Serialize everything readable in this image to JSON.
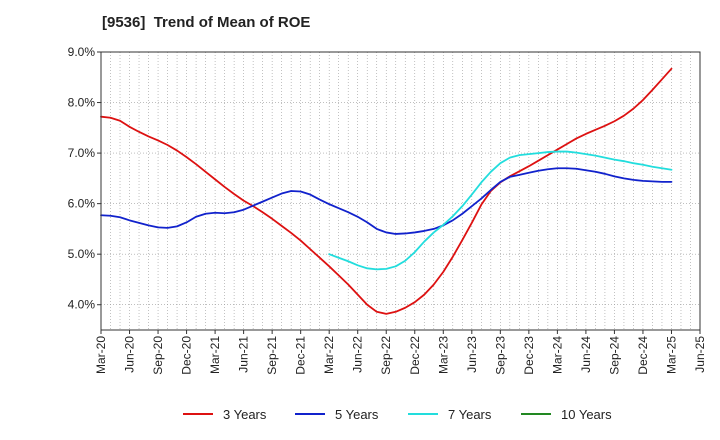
{
  "chart_data": {
    "type": "line",
    "title": "[9536]  Trend of Mean of ROE",
    "xlabel": "",
    "ylabel": "",
    "ylim": [
      3.5,
      9.0
    ],
    "yticks": [
      4.0,
      5.0,
      6.0,
      7.0,
      8.0,
      9.0
    ],
    "ytick_labels": [
      "4.0%",
      "5.0%",
      "6.0%",
      "7.0%",
      "8.0%",
      "9.0%"
    ],
    "xlim": [
      "2020-03",
      "2025-06"
    ],
    "xtick_labels": [
      "Mar-20",
      "Jun-20",
      "Sep-20",
      "Dec-20",
      "Mar-21",
      "Jun-21",
      "Sep-21",
      "Dec-21",
      "Mar-22",
      "Jun-22",
      "Sep-22",
      "Dec-22",
      "Mar-23",
      "Jun-23",
      "Sep-23",
      "Dec-23",
      "Mar-24",
      "Jun-24",
      "Sep-24",
      "Dec-24",
      "Mar-25",
      "Jun-25"
    ],
    "grid": true,
    "legend_position": "bottom",
    "series": [
      {
        "name": "3 Years",
        "color": "#dd1111",
        "x": [
          "2020-03",
          "2020-04",
          "2020-05",
          "2020-06",
          "2020-07",
          "2020-08",
          "2020-09",
          "2020-10",
          "2020-11",
          "2020-12",
          "2021-01",
          "2021-02",
          "2021-03",
          "2021-04",
          "2021-05",
          "2021-06",
          "2021-07",
          "2021-08",
          "2021-09",
          "2021-10",
          "2021-11",
          "2021-12",
          "2022-01",
          "2022-02",
          "2022-03",
          "2022-04",
          "2022-05",
          "2022-06",
          "2022-07",
          "2022-08",
          "2022-09",
          "2022-10",
          "2022-11",
          "2022-12",
          "2023-01",
          "2023-02",
          "2023-03",
          "2023-04",
          "2023-05",
          "2023-06",
          "2023-07",
          "2023-08",
          "2023-09",
          "2023-10",
          "2023-11",
          "2023-12",
          "2024-01",
          "2024-02",
          "2024-03",
          "2024-04",
          "2024-05",
          "2024-06",
          "2024-07",
          "2024-08",
          "2024-09",
          "2024-10",
          "2024-11",
          "2024-12",
          "2025-01",
          "2025-02",
          "2025-03"
        ],
        "values": [
          7.72,
          7.7,
          7.64,
          7.52,
          7.42,
          7.33,
          7.25,
          7.16,
          7.05,
          6.92,
          6.78,
          6.63,
          6.48,
          6.33,
          6.19,
          6.06,
          5.95,
          5.83,
          5.7,
          5.56,
          5.42,
          5.27,
          5.1,
          4.93,
          4.76,
          4.58,
          4.4,
          4.2,
          4.0,
          3.86,
          3.82,
          3.86,
          3.94,
          4.05,
          4.2,
          4.4,
          4.65,
          4.95,
          5.28,
          5.62,
          5.98,
          6.25,
          6.42,
          6.54,
          6.64,
          6.74,
          6.85,
          6.96,
          7.07,
          7.18,
          7.29,
          7.38,
          7.46,
          7.54,
          7.63,
          7.74,
          7.88,
          8.05,
          8.25,
          8.46,
          8.67
        ]
      },
      {
        "name": "5 Years",
        "color": "#1122cc",
        "x": [
          "2020-03",
          "2020-04",
          "2020-05",
          "2020-06",
          "2020-07",
          "2020-08",
          "2020-09",
          "2020-10",
          "2020-11",
          "2020-12",
          "2021-01",
          "2021-02",
          "2021-03",
          "2021-04",
          "2021-05",
          "2021-06",
          "2021-07",
          "2021-08",
          "2021-09",
          "2021-10",
          "2021-11",
          "2021-12",
          "2022-01",
          "2022-02",
          "2022-03",
          "2022-04",
          "2022-05",
          "2022-06",
          "2022-07",
          "2022-08",
          "2022-09",
          "2022-10",
          "2022-11",
          "2022-12",
          "2023-01",
          "2023-02",
          "2023-03",
          "2023-04",
          "2023-05",
          "2023-06",
          "2023-07",
          "2023-08",
          "2023-09",
          "2023-10",
          "2023-11",
          "2023-12",
          "2024-01",
          "2024-02",
          "2024-03",
          "2024-04",
          "2024-05",
          "2024-06",
          "2024-07",
          "2024-08",
          "2024-09",
          "2024-10",
          "2024-11",
          "2024-12",
          "2025-01",
          "2025-02",
          "2025-03"
        ],
        "values": [
          5.77,
          5.76,
          5.73,
          5.67,
          5.62,
          5.57,
          5.53,
          5.52,
          5.55,
          5.63,
          5.74,
          5.8,
          5.82,
          5.81,
          5.83,
          5.88,
          5.96,
          6.04,
          6.12,
          6.2,
          6.25,
          6.24,
          6.18,
          6.08,
          5.99,
          5.91,
          5.83,
          5.74,
          5.63,
          5.5,
          5.43,
          5.4,
          5.41,
          5.43,
          5.46,
          5.5,
          5.57,
          5.67,
          5.8,
          5.95,
          6.1,
          6.27,
          6.43,
          6.53,
          6.57,
          6.61,
          6.65,
          6.68,
          6.7,
          6.7,
          6.69,
          6.66,
          6.63,
          6.59,
          6.54,
          6.5,
          6.47,
          6.45,
          6.44,
          6.43,
          6.43
        ]
      },
      {
        "name": "7 Years",
        "color": "#22dddd",
        "x": [
          "2022-03",
          "2022-04",
          "2022-05",
          "2022-06",
          "2022-07",
          "2022-08",
          "2022-09",
          "2022-10",
          "2022-11",
          "2022-12",
          "2023-01",
          "2023-02",
          "2023-03",
          "2023-04",
          "2023-05",
          "2023-06",
          "2023-07",
          "2023-08",
          "2023-09",
          "2023-10",
          "2023-11",
          "2023-12",
          "2024-01",
          "2024-02",
          "2024-03",
          "2024-04",
          "2024-05",
          "2024-06",
          "2024-07",
          "2024-08",
          "2024-09",
          "2024-10",
          "2024-11",
          "2024-12",
          "2025-01",
          "2025-02",
          "2025-03"
        ],
        "values": [
          5.0,
          4.93,
          4.86,
          4.78,
          4.72,
          4.7,
          4.71,
          4.76,
          4.87,
          5.04,
          5.25,
          5.43,
          5.58,
          5.75,
          5.95,
          6.18,
          6.42,
          6.63,
          6.8,
          6.91,
          6.96,
          6.98,
          7.0,
          7.02,
          7.03,
          7.03,
          7.01,
          6.98,
          6.95,
          6.91,
          6.87,
          6.84,
          6.8,
          6.77,
          6.73,
          6.7,
          6.67
        ]
      },
      {
        "name": "10 Years",
        "color": "#228822",
        "x": [],
        "values": []
      }
    ]
  }
}
